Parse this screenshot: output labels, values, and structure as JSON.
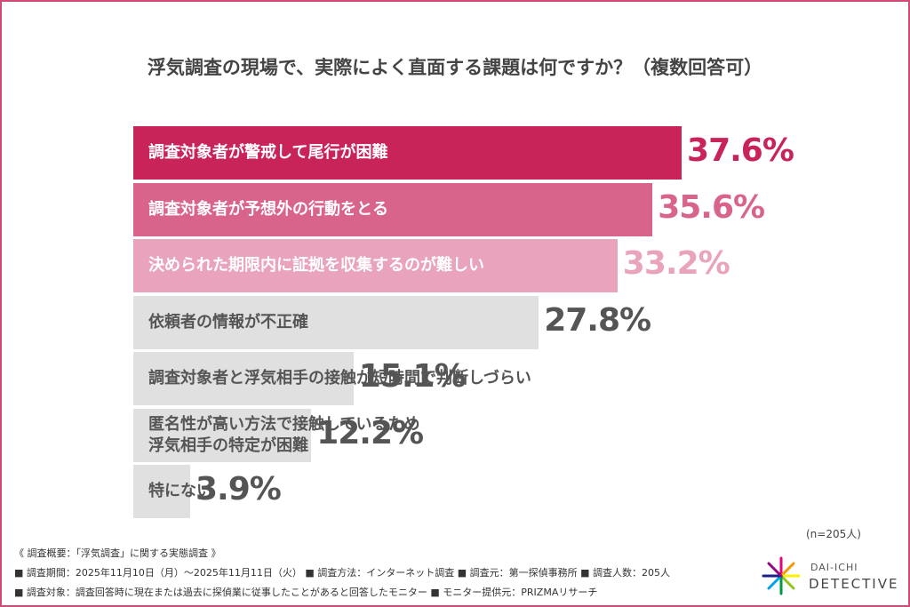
{
  "chart_data": {
    "type": "bar",
    "orientation": "horizontal",
    "title": "浮気調査の現場で、実際によく直面する課題は何ですか？（複数回答可）",
    "categories": [
      "調査対象者が警戒して尾行が困難",
      "調査対象者が予想外の行動をとる",
      "決められた期限内に証拠を収集するのが難しい",
      "依頼者の情報が不正確",
      "調査対象者と浮気相手の接触が短時間で判断しづらい",
      "匿名性が高い方法で接触しているため\n浮気相手の特定が困難",
      "特にない"
    ],
    "values": [
      37.6,
      35.6,
      33.2,
      27.8,
      15.1,
      12.2,
      3.9
    ],
    "value_labels": [
      "37.6%",
      "35.6%",
      "33.2%",
      "27.8%",
      "15.1%",
      "12.2%",
      "3.9%"
    ],
    "colors": [
      "#c9245a",
      "#d9648b",
      "#e9a3bd",
      "#e0e0e0",
      "#e0e0e0",
      "#e0e0e0",
      "#e0e0e0"
    ],
    "label_colors": [
      "#ffffff",
      "#ffffff",
      "#ffffff",
      "#555555",
      "#555555",
      "#555555",
      "#555555"
    ],
    "value_label_colors": [
      "#c9245a",
      "#d9648b",
      "#e9a3bd",
      "#555555",
      "#555555",
      "#555555",
      "#555555"
    ],
    "sample_note": "(n=205人)",
    "footer": [
      "《 調査概要：「浮気調査」に関する実態調査 》",
      "■ 調査期間：2025年11月10日（月）～2025年11月11日（火） ■ 調査方法：インターネット調査 ■ 調査元：第一探偵事務所 ■ 調査人数：205人",
      "■ 調査対象：調査回答時に現在または過去に探偵業に従事したことがあると回答したモニター ■ モニター提供元：PRIZMAリサーチ"
    ],
    "logo": {
      "top": "DAI-ICHI",
      "bottom": "DETECTIVE"
    }
  }
}
